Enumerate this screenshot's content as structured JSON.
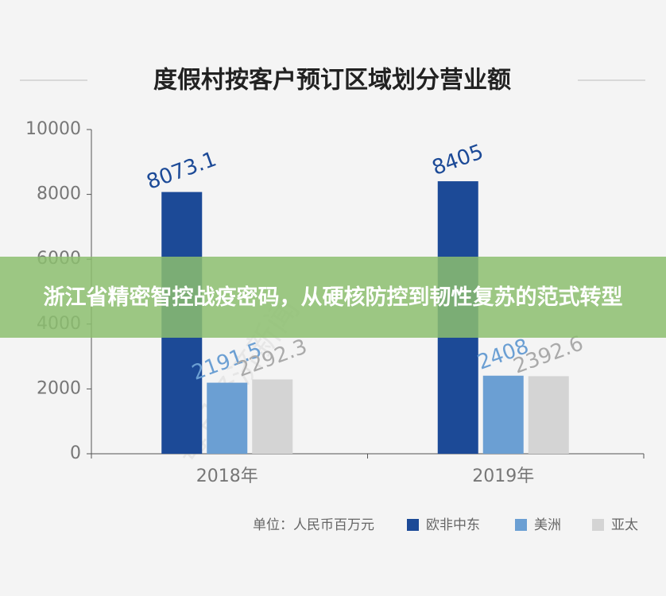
{
  "chart_data": {
    "type": "bar",
    "title": "度假村按客户预订区域划分营业额",
    "categories": [
      "2018年",
      "2019年"
    ],
    "series": [
      {
        "name": "欧非中东",
        "color": "#1c4a97",
        "values": [
          8073.1,
          8405
        ]
      },
      {
        "name": "美洲",
        "color": "#6b9fd3",
        "values": [
          2191.5,
          2408
        ]
      },
      {
        "name": "亚太",
        "color": "#d4d4d4",
        "values": [
          2292.3,
          2392.6
        ]
      }
    ],
    "ylim": [
      0,
      10000
    ],
    "yticks": [
      0,
      2000,
      4000,
      6000,
      8000,
      10000
    ],
    "unit_note": "单位：人民币百万元",
    "legend": "bottom-right"
  },
  "banner": "浙江省精密智控战疫密码，从硬核防控到韧性复苏的范式转型",
  "watermark": "每日经济新闻"
}
